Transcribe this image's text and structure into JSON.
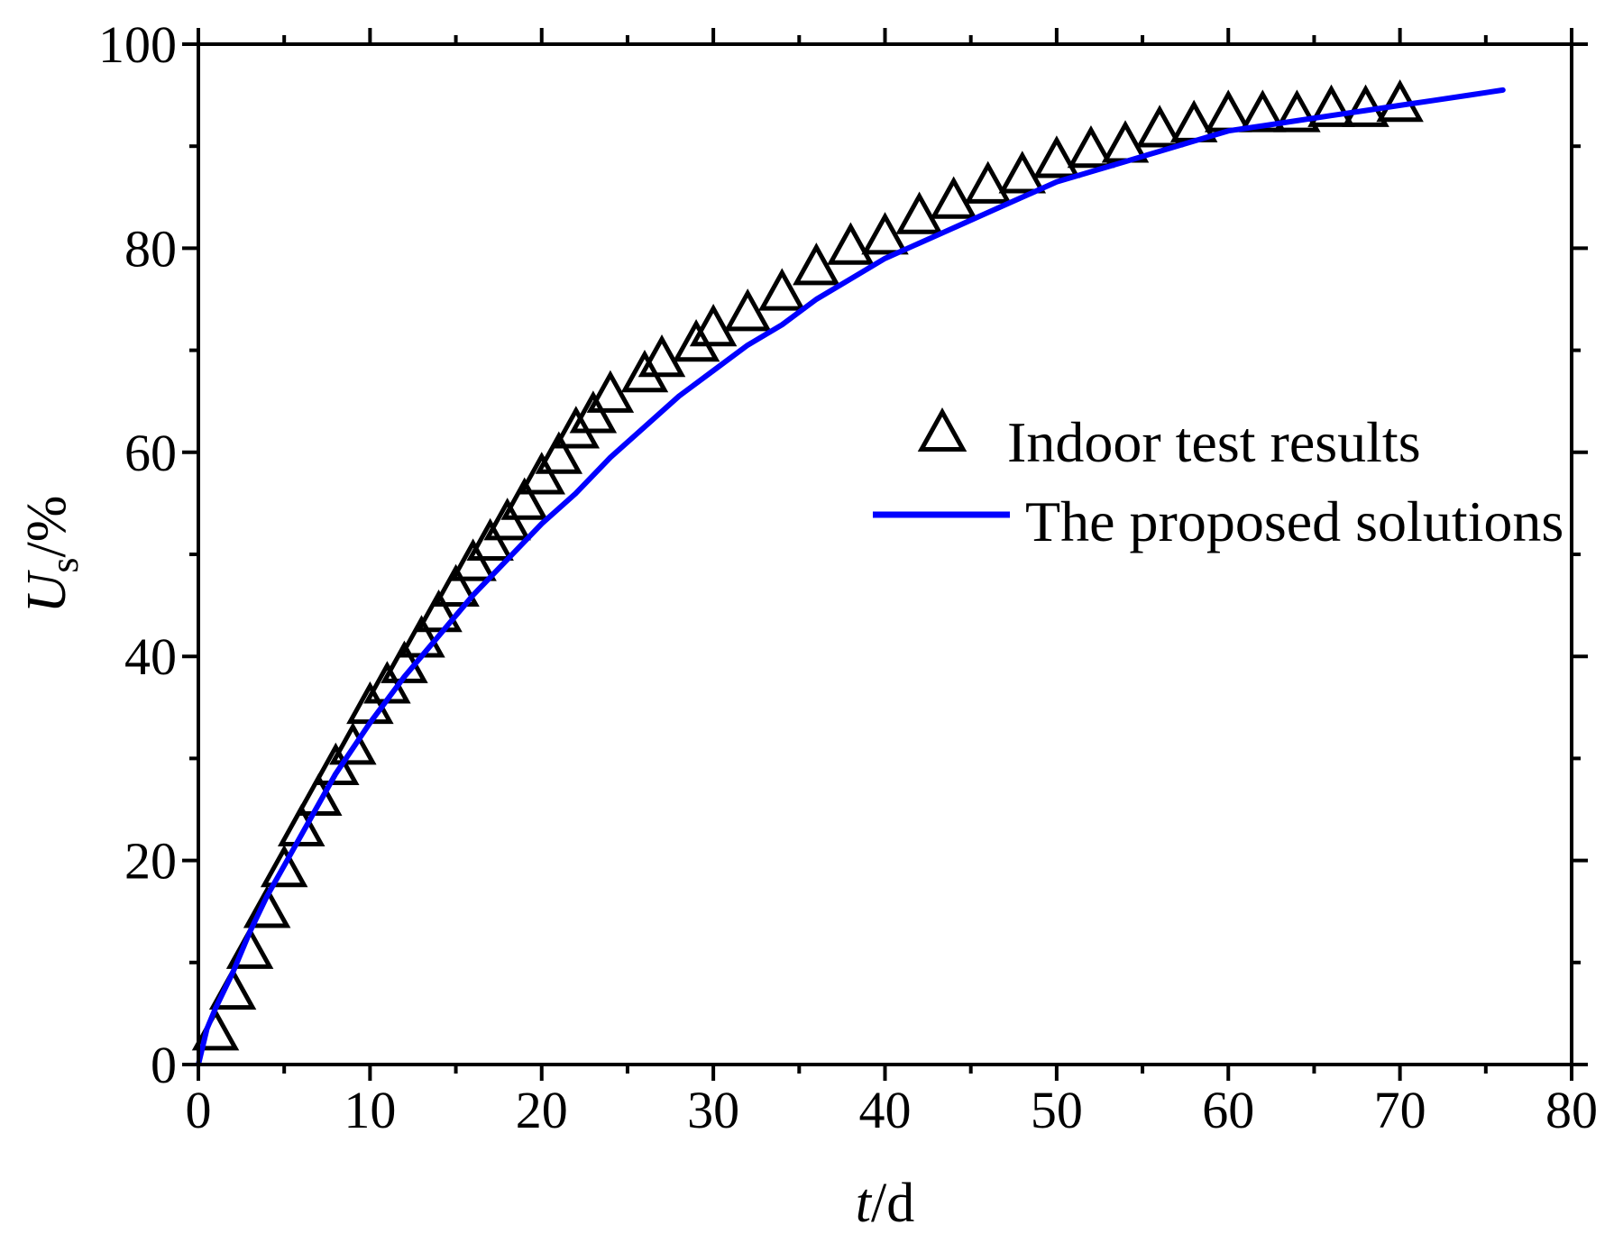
{
  "chart_data": {
    "type": "scatter",
    "title": "",
    "xlabel": {
      "italic": "t",
      "rest": "/d"
    },
    "ylabel": {
      "italic": "U",
      "subscript": "s",
      "rest": "/%"
    },
    "xlim": [
      0,
      80
    ],
    "ylim": [
      0,
      100
    ],
    "xticks": [
      0,
      10,
      20,
      30,
      40,
      50,
      60,
      70,
      80
    ],
    "yticks": [
      0,
      20,
      40,
      60,
      80,
      100
    ],
    "grid": false,
    "legend_position": "right",
    "series": [
      {
        "name": "Indoor test results",
        "kind": "marker",
        "marker": "open-triangle",
        "color": "#000000",
        "x": [
          1,
          2,
          3,
          4,
          5,
          6,
          7,
          8,
          9,
          10,
          11,
          12,
          13,
          14,
          15,
          16,
          17,
          18,
          19,
          20,
          21,
          22,
          23,
          24,
          26,
          27,
          29,
          30,
          32,
          34,
          36,
          38,
          40,
          42,
          44,
          46,
          48,
          50,
          52,
          54,
          56,
          58,
          60,
          62,
          64,
          66,
          68,
          70
        ],
        "y": [
          3,
          7,
          11,
          15,
          19,
          23,
          26,
          29,
          31,
          35,
          37,
          39,
          41.5,
          44,
          46.5,
          49,
          51,
          53,
          55,
          57.5,
          59.5,
          62,
          63.5,
          65.5,
          67.5,
          69,
          70.5,
          72,
          73.5,
          75.5,
          78,
          80,
          81,
          83,
          84.5,
          86,
          87,
          88.5,
          89.5,
          90,
          91.5,
          92,
          93,
          93,
          93,
          93.5,
          93.5,
          94
        ]
      },
      {
        "name": "The proposed solutions",
        "kind": "line",
        "color": "#0000ff",
        "x": [
          0,
          0.5,
          1,
          2,
          3,
          4,
          5,
          6,
          8,
          10,
          12,
          14,
          16,
          18,
          20,
          22,
          24,
          26,
          28,
          30,
          32,
          34,
          36,
          38,
          40,
          42,
          44,
          46,
          48,
          50,
          52,
          54,
          56,
          58,
          60,
          62,
          64,
          66,
          68,
          70,
          72,
          74,
          76
        ],
        "y": [
          0,
          3.5,
          5.5,
          9,
          13,
          16.5,
          19.5,
          22.5,
          28.5,
          33.5,
          38,
          42,
          46,
          49.5,
          53,
          56,
          59.5,
          62.5,
          65.5,
          68,
          70.5,
          72.5,
          75,
          77,
          79,
          80.5,
          82,
          83.5,
          85,
          86.5,
          87.5,
          88.5,
          89.5,
          90.5,
          91.5,
          92,
          92.5,
          93,
          93.5,
          94,
          94.5,
          95,
          95.5
        ]
      }
    ]
  }
}
